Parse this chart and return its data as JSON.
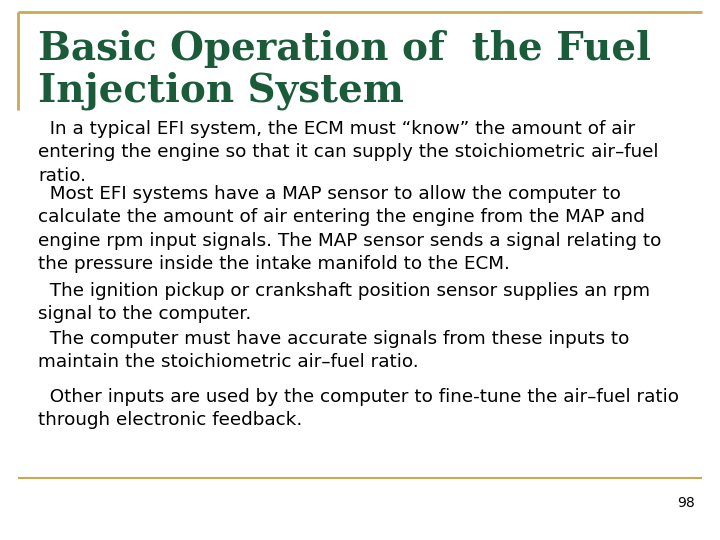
{
  "title_line1": "Basic Operation of  the Fuel",
  "title_line2": "Injection System",
  "title_color": "#1a5c3a",
  "background_color": "#ffffff",
  "border_color": "#c8aa50",
  "page_number": "98",
  "body_paragraphs": [
    "  In a typical EFI system, the ECM must “know” the amount of air\nentering the engine so that it can supply the stoichiometric air–fuel\nratio.",
    "  Most EFI systems have a MAP sensor to allow the computer to\ncalculate the amount of air entering the engine from the MAP and\nengine rpm input signals. The MAP sensor sends a signal relating to\nthe pressure inside the intake manifold to the ECM.",
    "  The ignition pickup or crankshaft position sensor supplies an rpm\nsignal to the computer.",
    "  The computer must have accurate signals from these inputs to\nmaintain the stoichiometric air–fuel ratio.",
    "  Other inputs are used by the computer to fine-tune the air–fuel ratio\nthrough electronic feedback."
  ],
  "body_font_size": 13.2,
  "title_font_size": 28,
  "text_color": "#000000",
  "page_num_fontsize": 10
}
